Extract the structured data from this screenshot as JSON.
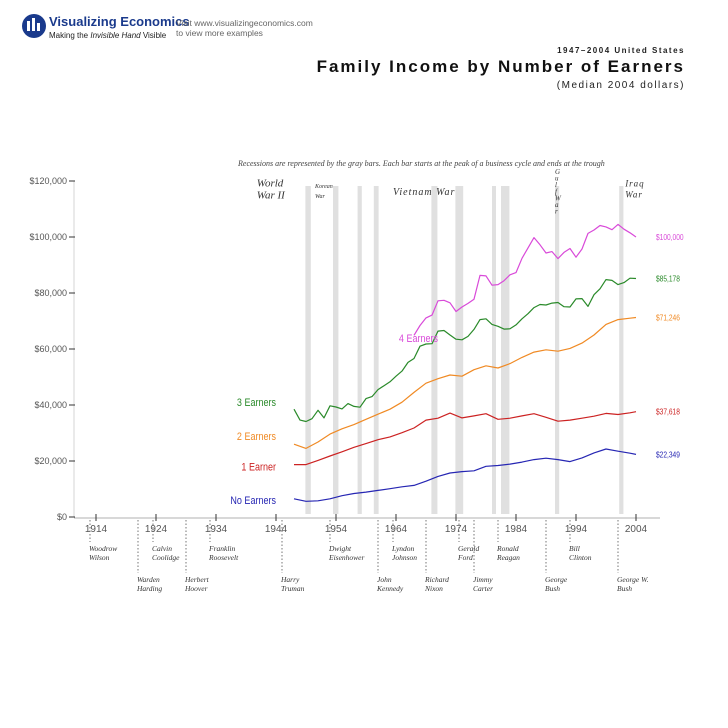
{
  "header": {
    "brand_name": "Visualizing Economics",
    "brand_tagline_prefix": "Making the ",
    "brand_tagline_emphasis": "Invisible Hand",
    "brand_tagline_suffix": " Visible",
    "visit_line1": "Visit www.visualizingeconomics.com",
    "visit_line2": "to view more examples"
  },
  "chart_data": {
    "type": "line",
    "title": "Family Income by Number of Earners",
    "supertitle": "1947–2004 United States",
    "subtitle": "(Median 2004 dollars)",
    "note": "Recessions are represented by the gray bars. Each bar starts at the peak of a business cycle and ends at the trough",
    "xlim": [
      1908,
      2008
    ],
    "ylim": [
      0,
      120000
    ],
    "x_ticks": [
      "1914",
      "1924",
      "1934",
      "1944",
      "1954",
      "1964",
      "1974",
      "1984",
      "1994",
      "2004"
    ],
    "y_ticks": [
      {
        "value": 0,
        "label": "$0"
      },
      {
        "value": 20000,
        "label": "$20,000"
      },
      {
        "value": 40000,
        "label": "$40,000"
      },
      {
        "value": 60000,
        "label": "$60,000"
      },
      {
        "value": 80000,
        "label": "$80,000"
      },
      {
        "value": 100000,
        "label": "$100,000"
      },
      {
        "value": 120000,
        "label": "$120,000"
      }
    ],
    "series": [
      {
        "name": "No Earners",
        "color": "#2626b3",
        "end_label": "$22,349",
        "label_at": [
          1944,
          6000
        ],
        "x": [
          1947,
          1949,
          1951,
          1953,
          1955,
          1957,
          1959,
          1961,
          1963,
          1965,
          1967,
          1969,
          1971,
          1973,
          1975,
          1977,
          1979,
          1981,
          1983,
          1985,
          1987,
          1989,
          1991,
          1993,
          1995,
          1997,
          1999,
          2001,
          2003,
          2004
        ],
        "values": [
          6500,
          5600,
          5800,
          6500,
          7600,
          8400,
          8900,
          9500,
          10100,
          10800,
          11300,
          12800,
          14500,
          15700,
          16200,
          16500,
          18100,
          18400,
          18900,
          19600,
          20500,
          21000,
          20500,
          19800,
          21100,
          22900,
          24300,
          23500,
          22800,
          22349
        ]
      },
      {
        "name": "1 Earner",
        "color": "#cc2222",
        "end_label": "$37,618",
        "label_at": [
          1944,
          18000
        ],
        "x": [
          1947,
          1949,
          1951,
          1953,
          1955,
          1957,
          1959,
          1961,
          1963,
          1965,
          1967,
          1969,
          1971,
          1973,
          1975,
          1977,
          1979,
          1981,
          1983,
          1985,
          1987,
          1989,
          1991,
          1993,
          1995,
          1997,
          1999,
          2001,
          2003,
          2004
        ],
        "values": [
          18700,
          18700,
          20200,
          21800,
          23300,
          24900,
          26200,
          27600,
          28600,
          30100,
          31800,
          34600,
          35300,
          37100,
          35400,
          36100,
          36900,
          34900,
          35300,
          36100,
          36900,
          35600,
          34200,
          34600,
          35300,
          36000,
          37000,
          36600,
          37200,
          37618
        ]
      },
      {
        "name": "2 Earners",
        "color": "#f08a24",
        "end_label": "$71,246",
        "label_at": [
          1944,
          29000
        ],
        "x": [
          1947,
          1949,
          1951,
          1953,
          1955,
          1957,
          1959,
          1961,
          1963,
          1965,
          1967,
          1969,
          1971,
          1973,
          1975,
          1977,
          1979,
          1981,
          1983,
          1985,
          1987,
          1989,
          1991,
          1993,
          1995,
          1997,
          1999,
          2001,
          2003,
          2004
        ],
        "values": [
          26000,
          24500,
          26800,
          29600,
          31500,
          33000,
          34900,
          36700,
          38500,
          41000,
          44500,
          47800,
          49400,
          50700,
          50300,
          52600,
          54000,
          53200,
          54800,
          57000,
          58900,
          59700,
          59200,
          60200,
          62100,
          65000,
          68800,
          70500,
          71000,
          71246
        ]
      },
      {
        "name": "3 Earners",
        "color": "#2a8a2a",
        "end_label": "$85,178",
        "label_at": [
          1944,
          41000
        ],
        "x": [
          1947,
          1948,
          1949,
          1950,
          1951,
          1952,
          1953,
          1954,
          1955,
          1956,
          1957,
          1958,
          1959,
          1960,
          1961,
          1962,
          1963,
          1964,
          1965,
          1966,
          1967,
          1968,
          1969,
          1970,
          1971,
          1972,
          1973,
          1974,
          1975,
          1976,
          1977,
          1978,
          1979,
          1980,
          1981,
          1982,
          1983,
          1984,
          1985,
          1986,
          1987,
          1988,
          1989,
          1990,
          1991,
          1992,
          1993,
          1994,
          1995,
          1996,
          1997,
          1998,
          1999,
          2000,
          2001,
          2002,
          2003,
          2004
        ],
        "values": [
          38500,
          34600,
          34100,
          35100,
          38100,
          35400,
          39700,
          39300,
          38600,
          40500,
          39500,
          39200,
          42300,
          43000,
          45500,
          46900,
          48300,
          50300,
          52100,
          55200,
          56600,
          61000,
          61800,
          61900,
          66400,
          66600,
          65000,
          63500,
          63300,
          64500,
          67000,
          70500,
          70800,
          68800,
          68100,
          67100,
          67200,
          68600,
          70800,
          72600,
          74800,
          75900,
          75700,
          76400,
          76600,
          75100,
          75000,
          77900,
          78000,
          75200,
          79400,
          81500,
          84800,
          84500,
          83000,
          83700,
          85300,
          85178
        ]
      },
      {
        "name": "4 Earners",
        "color": "#d94ad9",
        "end_label": "$100,000",
        "label_at": [
          1971,
          64000
        ],
        "x": [
          1967,
          1968,
          1969,
          1970,
          1971,
          1972,
          1973,
          1974,
          1975,
          1976,
          1977,
          1978,
          1979,
          1980,
          1981,
          1982,
          1983,
          1984,
          1985,
          1986,
          1987,
          1988,
          1989,
          1990,
          1991,
          1992,
          1993,
          1994,
          1995,
          1996,
          1997,
          1998,
          1999,
          2000,
          2001,
          2002,
          2003,
          2004
        ],
        "values": [
          64900,
          68400,
          71100,
          72100,
          77200,
          77400,
          76500,
          73400,
          75000,
          76300,
          77800,
          86300,
          86100,
          82800,
          83000,
          84400,
          86500,
          87300,
          92400,
          96100,
          99800,
          97200,
          94300,
          94800,
          92300,
          94500,
          95900,
          92800,
          95700,
          101300,
          102500,
          104100,
          103600,
          102600,
          104500,
          102800,
          101500,
          100000
        ]
      }
    ],
    "recessions": [
      {
        "start": 1948.9,
        "end": 1949.8,
        "label": "Korean War"
      },
      {
        "start": 1953.5,
        "end": 1954.4,
        "label": ""
      },
      {
        "start": 1957.6,
        "end": 1958.3,
        "label": ""
      },
      {
        "start": 1960.3,
        "end": 1961.1,
        "label": ""
      },
      {
        "start": 1969.9,
        "end": 1970.9,
        "label": ""
      },
      {
        "start": 1973.9,
        "end": 1975.2,
        "label": ""
      },
      {
        "start": 1980.0,
        "end": 1980.6,
        "label": ""
      },
      {
        "start": 1981.5,
        "end": 1982.9,
        "label": ""
      },
      {
        "start": 1990.5,
        "end": 1991.2,
        "label": ""
      },
      {
        "start": 2001.2,
        "end": 2001.9,
        "label": ""
      }
    ],
    "event_labels": [
      {
        "x": 1940.8,
        "y": 118000,
        "lines": [
          "World",
          "War II"
        ],
        "size": "large"
      },
      {
        "x": 1950.5,
        "y": 117500,
        "lines": [
          "Korean",
          "War"
        ],
        "size": "small"
      },
      {
        "x": 1963.5,
        "y": 115000,
        "lines": [
          "Vietnam War"
        ],
        "size": "vietnam"
      },
      {
        "x": 1990.5,
        "y": 122500,
        "lines": [
          "G",
          "u",
          "l",
          "f",
          "",
          "W",
          "a",
          "r"
        ],
        "size": "gulf"
      },
      {
        "x": 2002.2,
        "y": 118000,
        "lines": [
          "Iraq",
          "War"
        ],
        "size": "medium"
      }
    ],
    "presidents": [
      {
        "x": 1913,
        "row": 1,
        "first": "Woodrow",
        "last": "Wilson"
      },
      {
        "x": 1921,
        "row": 2,
        "first": "Warden",
        "last": "Harding"
      },
      {
        "x": 1923.5,
        "row": 1,
        "first": "Calvin",
        "last": "Coolidge"
      },
      {
        "x": 1929,
        "row": 2,
        "first": "Herbert",
        "last": "Hoover"
      },
      {
        "x": 1933,
        "row": 1,
        "first": "Franklin",
        "last": "Roosevelt"
      },
      {
        "x": 1945,
        "row": 2,
        "first": "Harry",
        "last": "Truman"
      },
      {
        "x": 1953,
        "row": 1,
        "first": "Dwight",
        "last": "Eisenhower"
      },
      {
        "x": 1961,
        "row": 2,
        "first": "John",
        "last": "Kennedy"
      },
      {
        "x": 1963.5,
        "row": 1,
        "first": "Lyndon",
        "last": "Johnson"
      },
      {
        "x": 1969,
        "row": 2,
        "first": "Richard",
        "last": "Nixon"
      },
      {
        "x": 1974.5,
        "row": 1,
        "first": "Gerald",
        "last": "Ford"
      },
      {
        "x": 1977,
        "row": 2,
        "first": "Jimmy",
        "last": "Carter"
      },
      {
        "x": 1981,
        "row": 1,
        "first": "Ronald",
        "last": "Reagan"
      },
      {
        "x": 1989,
        "row": 2,
        "first": "George",
        "last": "Bush"
      },
      {
        "x": 1993,
        "row": 1,
        "first": "Bill",
        "last": "Clinton"
      },
      {
        "x": 2001,
        "row": 2,
        "first": "George W.",
        "last": "Bush"
      }
    ],
    "colors": {
      "axis": "#333333",
      "recession": "#e0e0e0",
      "text": "#555555",
      "brand": "#1a3a8c"
    }
  }
}
